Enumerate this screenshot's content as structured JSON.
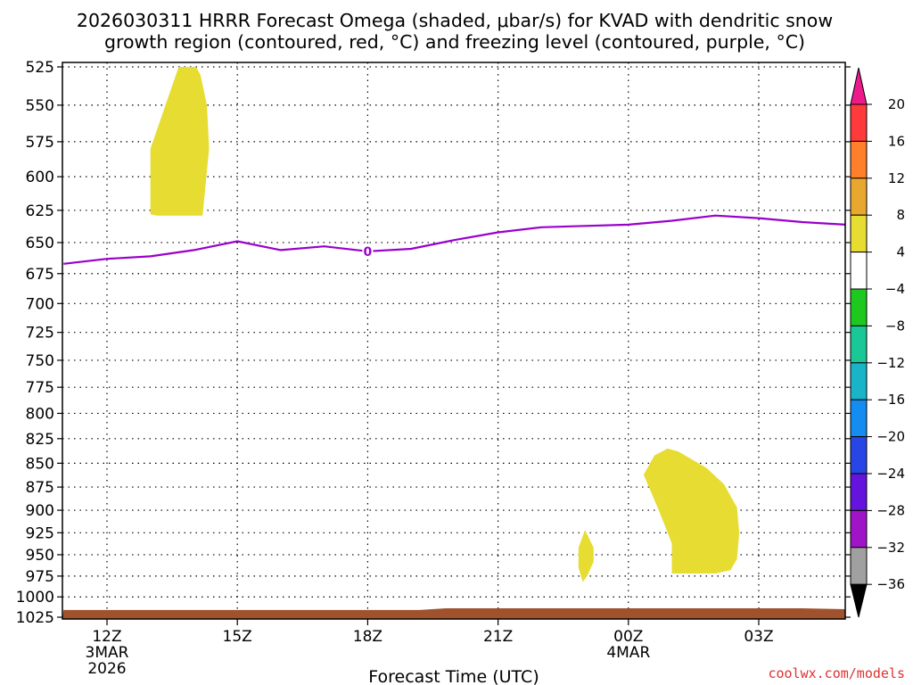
{
  "chart_data": {
    "type": "contour",
    "title_line1": "2026030311 HRRR Forecast Omega (shaded, μbar/s) for KVAD with dendritic snow",
    "title_line2": "growth region (contoured, red, °C) and freezing level (contoured, purple, °C)",
    "xlabel": "Forecast Time (UTC)",
    "credit": "coolwx.com/models",
    "y_axis": {
      "min": 525,
      "max": 1025,
      "inverted": true,
      "scale": "log-pressure",
      "ticks": [
        525,
        550,
        575,
        600,
        625,
        650,
        675,
        700,
        725,
        750,
        775,
        800,
        825,
        850,
        875,
        900,
        925,
        950,
        975,
        1000,
        1025
      ],
      "tick_labels": [
        "525",
        "550",
        "575",
        "600",
        "625",
        "650",
        "675",
        "700",
        "725",
        "750",
        "775",
        "800",
        "825",
        "850",
        "875",
        "900",
        "925",
        "950",
        "975",
        "1000",
        "1025"
      ]
    },
    "x_axis": {
      "min_hour": 11,
      "max_hour": 29,
      "units": "hours since 2026-03-03 00Z",
      "ticks": [
        {
          "hour": 12,
          "label": "12Z",
          "sub1": "3MAR",
          "sub2": "2026"
        },
        {
          "hour": 15,
          "label": "15Z",
          "sub1": "",
          "sub2": ""
        },
        {
          "hour": 18,
          "label": "18Z",
          "sub1": "",
          "sub2": ""
        },
        {
          "hour": 21,
          "label": "21Z",
          "sub1": "",
          "sub2": ""
        },
        {
          "hour": 24,
          "label": "00Z",
          "sub1": "4MAR",
          "sub2": ""
        },
        {
          "hour": 27,
          "label": "03Z",
          "sub1": "",
          "sub2": ""
        }
      ]
    },
    "grid": true,
    "freezing_level": {
      "color": "#9900cc",
      "label": "0",
      "label_hour": 18,
      "hours": [
        11,
        12,
        13,
        14,
        15,
        16,
        17,
        18,
        19,
        20,
        21,
        22,
        23,
        24,
        25,
        26,
        27,
        28,
        29
      ],
      "pressure": [
        667,
        663,
        661,
        656,
        649,
        656,
        653,
        657,
        655,
        648,
        642,
        638,
        637,
        636,
        633,
        629,
        631,
        634,
        636
      ]
    },
    "omega_regions": [
      {
        "name": "upward motion 4-8 ubar/s upper",
        "color": "#e6dc32",
        "hours": [
          13.0,
          13.0,
          13.15,
          13.35,
          13.55,
          13.75,
          14.2,
          14.35,
          14.3,
          14.15,
          14.05,
          13.95,
          13.65
        ],
        "pressure": [
          580,
          628,
          629,
          629,
          629,
          629,
          629,
          580,
          550,
          530,
          525,
          525,
          525
        ]
      },
      {
        "name": "upward motion 4-8 ubar/s small",
        "color": "#e6dc32",
        "hours": [
          23.0,
          22.85,
          22.85,
          22.95,
          23.05,
          23.2,
          23.2
        ],
        "pressure": [
          922,
          942,
          965,
          982,
          975,
          958,
          942
        ]
      },
      {
        "name": "upward motion 4-8 ubar/s lower",
        "color": "#e6dc32",
        "hours": [
          24.35,
          24.6,
          24.9,
          25.15,
          25.8,
          26.2,
          26.5,
          26.55,
          26.5,
          26.35,
          26.0,
          25.0,
          25.0,
          24.7
        ],
        "pressure": [
          862,
          842,
          835,
          838,
          855,
          872,
          897,
          925,
          955,
          968,
          972,
          972,
          937,
          900
        ]
      }
    ],
    "terrain": {
      "color": "#a0522d",
      "hours": [
        11,
        19.2,
        19.8,
        28.0,
        29
      ],
      "pressure": [
        1016,
        1016,
        1014,
        1014,
        1015
      ]
    },
    "colorbar": {
      "labels": [
        "20",
        "16",
        "12",
        "8",
        "4",
        "-4",
        "-8",
        "-12",
        "-16",
        "-20",
        "-24",
        "-28",
        "-32",
        "-36"
      ],
      "top_arrow_color": "#ee1a8c",
      "bottom_arrow_color": "#000000",
      "segments": [
        {
          "from": 20,
          "to": 16,
          "color": "#ff3a3a"
        },
        {
          "from": 16,
          "to": 12,
          "color": "#ff7f2a"
        },
        {
          "from": 12,
          "to": 8,
          "color": "#e8a830"
        },
        {
          "from": 8,
          "to": 4,
          "color": "#e6dc32"
        },
        {
          "from": 4,
          "to": -4,
          "color": "#ffffff"
        },
        {
          "from": -4,
          "to": -8,
          "color": "#1ec81e"
        },
        {
          "from": -8,
          "to": -12,
          "color": "#19c896"
        },
        {
          "from": -12,
          "to": -16,
          "color": "#19b4c8"
        },
        {
          "from": -16,
          "to": -20,
          "color": "#148cf0"
        },
        {
          "from": -20,
          "to": -24,
          "color": "#2846e6"
        },
        {
          "from": -24,
          "to": -28,
          "color": "#6414dc"
        },
        {
          "from": -28,
          "to": -32,
          "color": "#a014c8"
        },
        {
          "from": -32,
          "to": -36,
          "color": "#a0a0a0"
        }
      ]
    }
  }
}
